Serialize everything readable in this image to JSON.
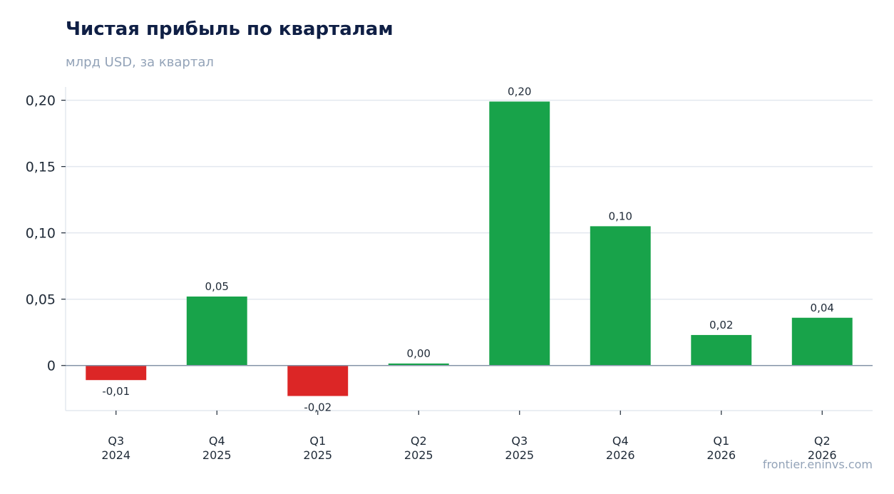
{
  "chart_data": {
    "type": "bar",
    "title": "Чистая прибыль по кварталам",
    "subtitle": "млрд USD, за квартал",
    "categories": [
      [
        "Q3",
        "2024"
      ],
      [
        "Q4",
        "2025"
      ],
      [
        "Q1",
        "2025"
      ],
      [
        "Q2",
        "2025"
      ],
      [
        "Q3",
        "2025"
      ],
      [
        "Q4",
        "2026"
      ],
      [
        "Q1",
        "2026"
      ],
      [
        "Q2",
        "2026"
      ]
    ],
    "values": [
      -0.011,
      0.052,
      -0.023,
      0.0015,
      0.199,
      0.105,
      0.023,
      0.036
    ],
    "data_labels": [
      "-0,01",
      "0,05",
      "-0,02",
      "0,00",
      "0,20",
      "0,10",
      "0,02",
      "0,04"
    ],
    "ylim": [
      -0.034,
      0.21
    ],
    "yticks": [
      0,
      0.05,
      0.1,
      0.15,
      0.2
    ],
    "ytick_labels": [
      "0",
      "0,05",
      "0,10",
      "0,15",
      "0,20"
    ],
    "grid": true,
    "legend": "none",
    "xlabel": "",
    "ylabel": ""
  },
  "colors": {
    "positive": "#18a34a",
    "negative": "#dc2626",
    "grid": "#e3e8ef",
    "zero_line": "#8595a8",
    "title": "#0f1f45",
    "muted": "#93a3b8"
  },
  "source": "frontier.eninvs.com"
}
